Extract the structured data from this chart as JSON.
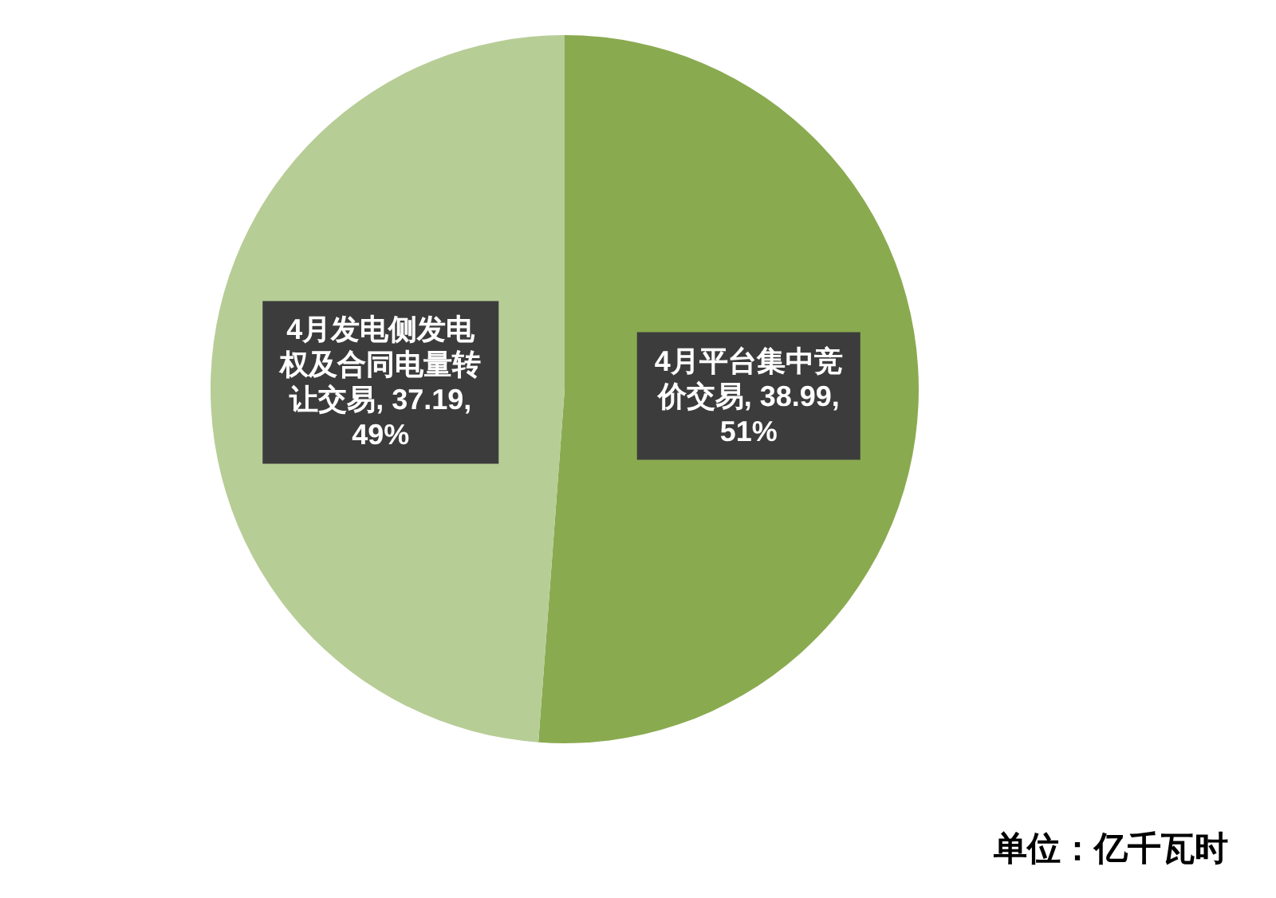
{
  "chart_data": {
    "type": "pie",
    "categories": [
      "4月平台集中竞价交易",
      "4月发电侧发电权及合同电量转让交易"
    ],
    "values": [
      38.99,
      37.19
    ],
    "colors": [
      "#8aaa50",
      "#b7cd96"
    ],
    "value_labels": [
      "38.99, 51%",
      "37.19, 49%"
    ],
    "annotations": [
      "单位：亿千瓦时"
    ]
  }
}
